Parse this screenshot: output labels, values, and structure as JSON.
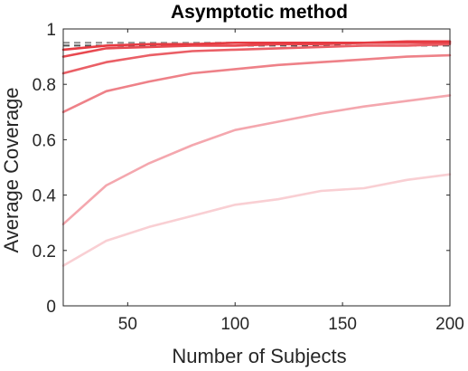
{
  "chart_data": {
    "type": "line",
    "title": "Asymptotic method",
    "xlabel": "Number of Subjects",
    "ylabel": "Average Coverage",
    "xlim": [
      20,
      200
    ],
    "ylim": [
      0,
      1
    ],
    "xticks": [
      50,
      100,
      150,
      200
    ],
    "yticks": [
      0,
      0.2,
      0.4,
      0.6,
      0.8,
      1
    ],
    "ytick_labels": [
      "0",
      "0.2",
      "0.4",
      "0.6",
      "0.8",
      "1"
    ],
    "grid": false,
    "x": [
      20,
      40,
      60,
      80,
      100,
      120,
      140,
      160,
      180,
      200
    ],
    "series": [
      {
        "color": "#f9cfd3",
        "values": [
          0.145,
          0.235,
          0.285,
          0.325,
          0.365,
          0.385,
          0.415,
          0.425,
          0.455,
          0.475
        ]
      },
      {
        "color": "#f4a7ae",
        "values": [
          0.295,
          0.435,
          0.515,
          0.58,
          0.635,
          0.665,
          0.695,
          0.72,
          0.74,
          0.76
        ]
      },
      {
        "color": "#ee8188",
        "values": [
          0.7,
          0.775,
          0.81,
          0.84,
          0.855,
          0.87,
          0.88,
          0.89,
          0.9,
          0.905
        ]
      },
      {
        "color": "#ea5f66",
        "values": [
          0.84,
          0.88,
          0.905,
          0.92,
          0.925,
          0.93,
          0.935,
          0.94,
          0.94,
          0.945
        ]
      },
      {
        "color": "#e84950",
        "values": [
          0.9,
          0.93,
          0.935,
          0.94,
          0.94,
          0.945,
          0.945,
          0.95,
          0.95,
          0.95
        ]
      },
      {
        "color": "#e63a41",
        "values": [
          0.925,
          0.94,
          0.945,
          0.945,
          0.95,
          0.95,
          0.95,
          0.95,
          0.955,
          0.955
        ]
      }
    ],
    "reference_lines": [
      {
        "value": 0.95,
        "color": "#8c8c8c",
        "style": "dashed"
      },
      {
        "value": 0.94,
        "color": "#555555",
        "style": "dashed"
      }
    ]
  }
}
